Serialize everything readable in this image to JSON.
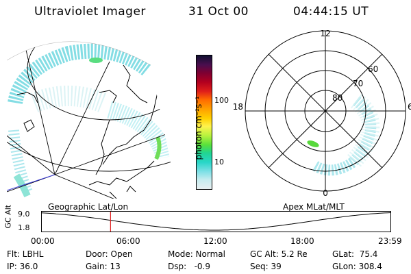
{
  "header": {
    "title": "Ultraviolet Imager",
    "date": "31 Oct 00",
    "time": "04:44:15 UT"
  },
  "colorbar": {
    "label": "photon cm⁻²s⁻¹",
    "ticks": [
      "100",
      "10"
    ],
    "colors": [
      "#101030",
      "#4a0e4e",
      "#7d0032",
      "#b3001f",
      "#e0201a",
      "#ff6a00",
      "#ff9f00",
      "#ffd000",
      "#fff34d",
      "#b7f23e",
      "#58e03c",
      "#21d491",
      "#28d6c8",
      "#7fe0e6",
      "#c6ecef",
      "#e8eef0"
    ]
  },
  "polar_plot": {
    "labels": {
      "top": "12",
      "left": "18",
      "right": "6",
      "bottom": "0"
    },
    "lat_labels": [
      "60",
      "70",
      "80"
    ]
  },
  "altitude_plot": {
    "left_caption": "Geographic Lat/Lon",
    "right_caption": "Apex MLat/MLT",
    "y_title": "GC Alt",
    "y_ticks": [
      "9.0",
      "1.8"
    ],
    "x_ticks": [
      "00:00",
      "06:00",
      "12:00",
      "18:00",
      "23:59"
    ],
    "marker_time": "04:44",
    "marker_color": "#e02020"
  },
  "status": {
    "flt": "Flt: LBHL",
    "ip": "IP: 36.0",
    "door": "Door: Open",
    "gain": "Gain: 13",
    "mode": "Mode: Normal",
    "dsp": "Dsp:   -0.9",
    "gcalt": "GC Alt: 5.2 Re",
    "seq": "Seq: 39",
    "glat": "GLat:  75.4",
    "glon": "GLon: 308.4"
  }
}
